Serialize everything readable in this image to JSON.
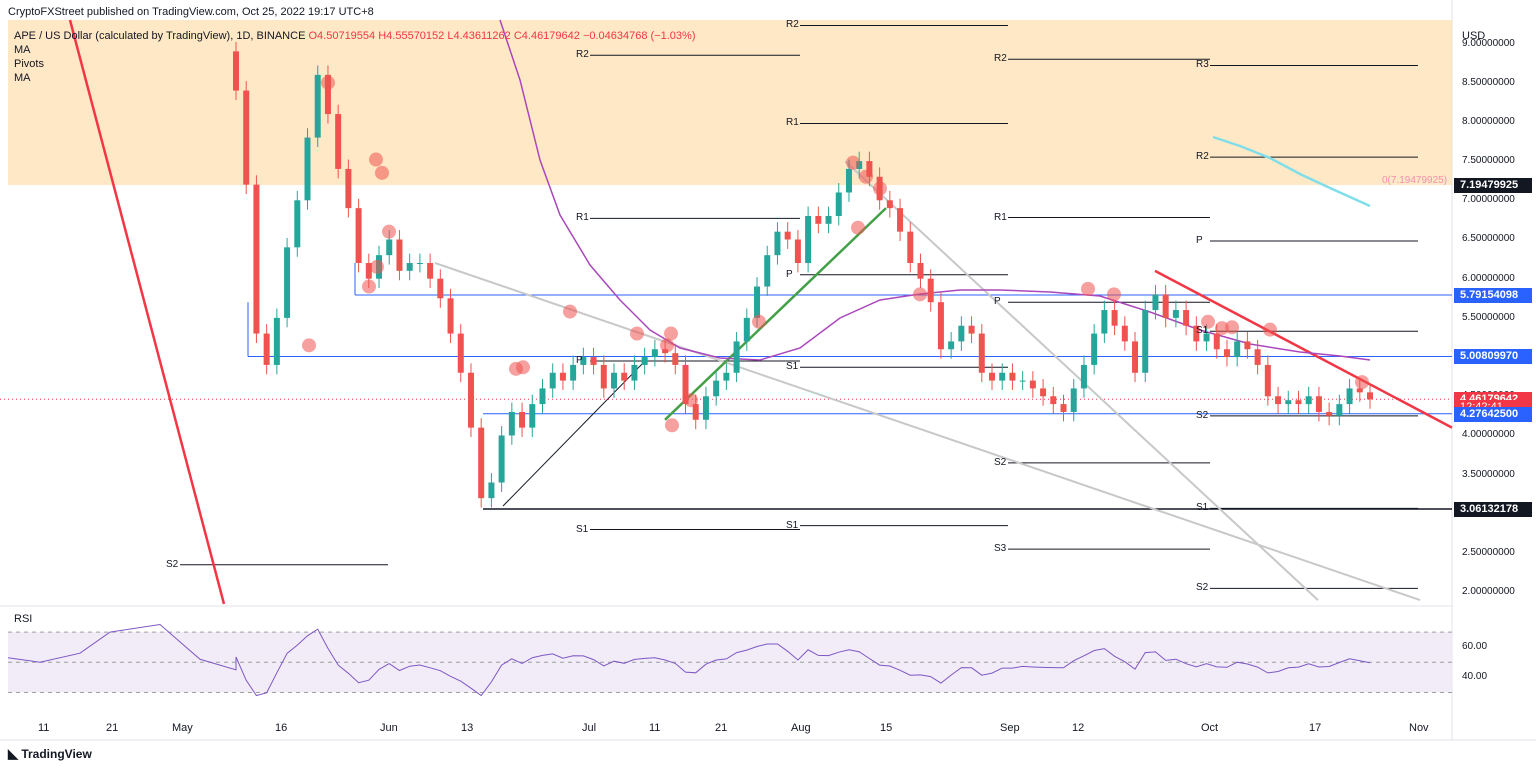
{
  "publisher": "CryptoFXStreet published on TradingView.com, Oct 25, 2022 19:17 UTC+8",
  "symbol": "APE / US Dollar (calculated by TradingView), 1D, BINANCE",
  "ohlc": {
    "o": "O4.50719554",
    "h": "H4.55570152",
    "l": "L4.43611262",
    "c": "C4.46179642",
    "chg": "−0.04634768 (−1.03%)"
  },
  "indicators": [
    "MA",
    "Pivots",
    "MA"
  ],
  "currency": "USD",
  "price_ticks": [
    "9.00000000",
    "8.50000000",
    "8.00000000",
    "7.50000000",
    "7.00000000",
    "6.50000000",
    "6.00000000",
    "5.50000000",
    "5.00000000",
    "4.50000000",
    "4.00000000",
    "3.50000000",
    "3.00000000",
    "2.50000000",
    "2.00000000"
  ],
  "price_tick_values": [
    9.0,
    8.5,
    8.0,
    7.5,
    7.0,
    6.5,
    6.0,
    5.5,
    5.0,
    4.5,
    4.0,
    3.5,
    3.0,
    2.5,
    2.0
  ],
  "x_ticks": [
    "11",
    "21",
    "May",
    "16",
    "Jun",
    "13",
    "Jul",
    "11",
    "21",
    "Aug",
    "15",
    "Sep",
    "12",
    "Oct",
    "17",
    "Nov"
  ],
  "tags": [
    {
      "label": "7.19479925",
      "value": 7.19479925,
      "color": "#131722"
    },
    {
      "label": "5.79154098",
      "value": 5.79154098,
      "color": "#2962ff"
    },
    {
      "label": "5.00809970",
      "value": 5.0080997,
      "color": "#2962ff"
    },
    {
      "label": "4.46179642",
      "value": 4.46179642,
      "color": "#f23645"
    },
    {
      "label": "12:42:41",
      "value": 4.36,
      "color": "#f23645"
    },
    {
      "label": "4.27642500",
      "value": 4.276425,
      "color": "#2962ff"
    },
    {
      "label": "3.06132178",
      "value": 3.06132178,
      "color": "#131722"
    }
  ],
  "fib_label": "0(7.19479925)",
  "rsi": {
    "label": "RSI",
    "ticks": [
      "60.00",
      "40.00"
    ],
    "tick_values": [
      60,
      40
    ]
  },
  "pivot_labels": [
    "R2",
    "R2",
    "R2",
    "R3",
    "R1",
    "R2",
    "R1",
    "R1",
    "P",
    "P",
    "P",
    "P",
    "S1",
    "S1",
    "S1",
    "S1",
    "S2",
    "S2",
    "S2",
    "S3",
    "S1",
    "S2"
  ],
  "footer": "TradingView",
  "colors": {
    "up": "#26a69a",
    "down": "#ef5350",
    "zone": "#ffe0b2",
    "ma": "#ab47bc",
    "fib": "#80deea",
    "trend": "#f23645",
    "green": "#43a047",
    "grey": "#c8c8c8"
  },
  "chart_data": {
    "type": "candlestick",
    "x_axis": "date (2022)",
    "ylim": [
      1.85,
      9.3
    ],
    "series": [
      {
        "name": "APE / US Dollar",
        "close": [
          8.4,
          7.2,
          5.3,
          4.9,
          5.5,
          6.4,
          7.0,
          7.8,
          8.6,
          8.1,
          7.4,
          6.9,
          6.2,
          6.0,
          6.3,
          6.5,
          6.1,
          6.2,
          6.2,
          6.0,
          5.75,
          5.3,
          4.8,
          4.1,
          3.2,
          3.4,
          4.0,
          4.3,
          4.1,
          4.4,
          4.6,
          4.8,
          4.7,
          4.9,
          5.0,
          4.9,
          4.6,
          4.8,
          4.7,
          4.9,
          5.0,
          5.1,
          5.05,
          4.9,
          4.4,
          4.2,
          4.5,
          4.7,
          4.8,
          5.2,
          5.5,
          5.9,
          6.3,
          6.6,
          6.5,
          6.2,
          6.8,
          6.7,
          6.8,
          7.1,
          7.4,
          7.5,
          7.3,
          7.0,
          6.9,
          6.6,
          6.2,
          6.0,
          5.7,
          5.1,
          5.2,
          5.4,
          5.3,
          4.8,
          4.7,
          4.8,
          4.7,
          4.7,
          4.6,
          4.5,
          4.4,
          4.3,
          4.6,
          4.9,
          5.3,
          5.6,
          5.4,
          5.2,
          4.8,
          5.6,
          5.8,
          5.5,
          5.6,
          5.4,
          5.2,
          5.3,
          5.1,
          5.0,
          5.2,
          5.1,
          4.9,
          4.5,
          4.4,
          4.45,
          4.4,
          4.5,
          4.3,
          4.25,
          4.4,
          4.6,
          4.55,
          4.46
        ]
      }
    ],
    "key_levels": [
      7.19479925,
      5.79154098,
      5.0080997,
      4.276425,
      3.06132178
    ]
  }
}
